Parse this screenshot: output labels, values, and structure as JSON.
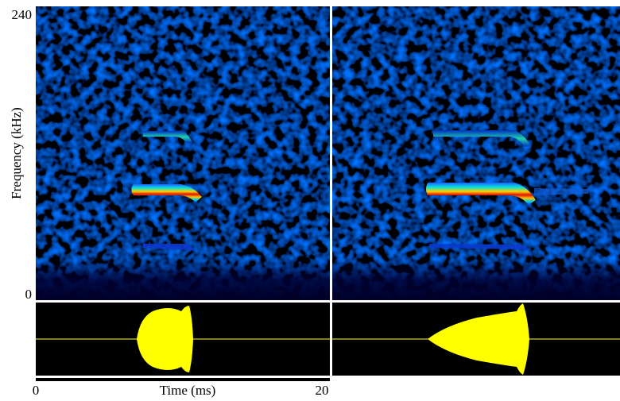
{
  "chart_data": {
    "type": "spectrogram",
    "ylabel": "Frequency (kHz)",
    "xlabel": "Time (ms)",
    "ylim": [
      0,
      240
    ],
    "yticks": [
      0,
      240
    ],
    "xlim": [
      0,
      20
    ],
    "xticks": [
      0,
      20
    ]
  }
}
